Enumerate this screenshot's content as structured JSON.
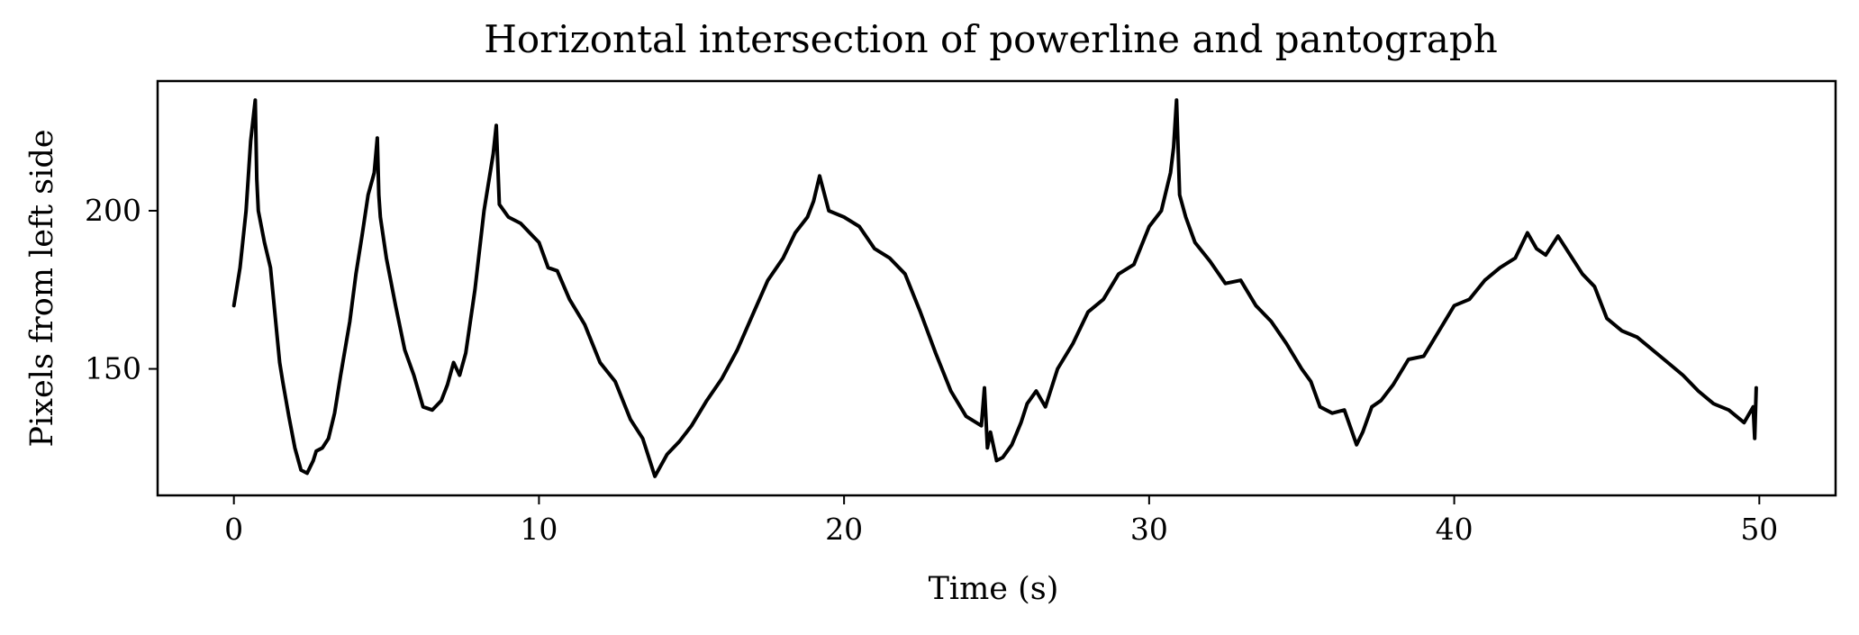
{
  "chart_data": {
    "type": "line",
    "title": "Horizontal intersection of powerline and pantograph",
    "xlabel": "Time (s)",
    "ylabel": "Pixels from left side",
    "xlim": [
      -2.5,
      52.5
    ],
    "ylim": [
      110,
      241
    ],
    "xticks": [
      0,
      10,
      20,
      30,
      40,
      50
    ],
    "yticks": [
      150,
      200
    ],
    "grid": false,
    "legend": "none",
    "series": [
      {
        "color": "#000000",
        "x": [
          0.0,
          0.2,
          0.4,
          0.55,
          0.7,
          0.75,
          0.8,
          1.0,
          1.2,
          1.3,
          1.4,
          1.5,
          1.6,
          1.8,
          2.0,
          2.2,
          2.4,
          2.6,
          2.7,
          2.9,
          3.1,
          3.3,
          3.5,
          3.8,
          4.0,
          4.2,
          4.4,
          4.6,
          4.7,
          4.75,
          4.8,
          5.0,
          5.3,
          5.6,
          5.9,
          6.2,
          6.5,
          6.8,
          7.0,
          7.2,
          7.4,
          7.6,
          7.9,
          8.2,
          8.5,
          8.6,
          8.7,
          9.0,
          9.4,
          9.8,
          10.0,
          10.3,
          10.6,
          11.0,
          11.5,
          12.0,
          12.5,
          13.0,
          13.4,
          13.8,
          14.2,
          14.6,
          15.0,
          15.5,
          16.0,
          16.5,
          17.0,
          17.5,
          18.0,
          18.4,
          18.8,
          19.0,
          19.2,
          19.5,
          20.0,
          20.5,
          21.0,
          21.5,
          22.0,
          22.5,
          23.0,
          23.5,
          24.0,
          24.5,
          24.6,
          24.7,
          24.8,
          25.0,
          25.2,
          25.5,
          25.8,
          26.0,
          26.3,
          26.6,
          27.0,
          27.5,
          28.0,
          28.5,
          29.0,
          29.5,
          30.0,
          30.4,
          30.7,
          30.8,
          30.9,
          31.0,
          31.2,
          31.5,
          32.0,
          32.5,
          33.0,
          33.5,
          34.0,
          34.5,
          35.0,
          35.3,
          35.6,
          36.0,
          36.4,
          36.8,
          37.0,
          37.3,
          37.6,
          38.0,
          38.5,
          39.0,
          39.5,
          40.0,
          40.5,
          41.0,
          41.5,
          42.0,
          42.4,
          42.7,
          43.0,
          43.4,
          43.8,
          44.2,
          44.6,
          45.0,
          45.5,
          46.0,
          46.5,
          47.0,
          47.5,
          48.0,
          48.5,
          49.0,
          49.5,
          49.8,
          49.85,
          49.9
        ],
        "values": [
          170,
          182,
          200,
          222,
          235,
          210,
          200,
          190,
          182,
          172,
          162,
          152,
          146,
          135,
          125,
          118,
          117,
          121,
          124,
          125,
          128,
          136,
          148,
          165,
          180,
          192,
          205,
          212,
          223,
          205,
          198,
          185,
          170,
          156,
          148,
          138,
          137,
          140,
          145,
          152,
          148,
          155,
          175,
          200,
          218,
          227,
          202,
          198,
          196,
          192,
          190,
          182,
          181,
          172,
          164,
          152,
          146,
          134,
          128,
          116,
          123,
          127,
          132,
          140,
          147,
          156,
          167,
          178,
          185,
          193,
          198,
          203,
          211,
          200,
          198,
          195,
          188,
          185,
          180,
          168,
          155,
          143,
          135,
          132,
          144,
          125,
          130,
          121,
          122,
          126,
          133,
          139,
          143,
          138,
          150,
          158,
          168,
          172,
          180,
          183,
          195,
          200,
          212,
          220,
          235,
          205,
          198,
          190,
          184,
          177,
          178,
          170,
          165,
          158,
          150,
          146,
          138,
          136,
          137,
          126,
          130,
          138,
          140,
          145,
          153,
          154,
          162,
          170,
          172,
          178,
          182,
          185,
          193,
          188,
          186,
          192,
          186,
          180,
          176,
          166,
          162,
          160,
          156,
          152,
          148,
          143,
          139,
          137,
          133,
          138,
          128,
          144
        ]
      }
    ]
  }
}
